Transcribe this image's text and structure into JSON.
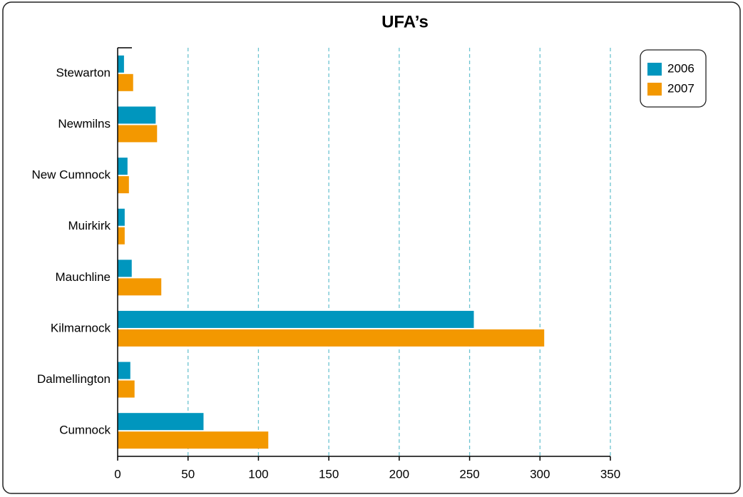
{
  "chart_data": {
    "type": "hbar",
    "title": "UFA’s",
    "categories": [
      "Stewarton",
      "Newmilns",
      "New Cumnock",
      "Muirkirk",
      "Mauchline",
      "Kilmarnock",
      "Dalmellington",
      "Cumnock"
    ],
    "series": [
      {
        "name": "2006",
        "color": "#0096be",
        "values": [
          4.5,
          27,
          7,
          5,
          10,
          253,
          9,
          61
        ]
      },
      {
        "name": "2007",
        "color": "#f39800",
        "values": [
          11,
          28,
          8,
          5,
          31,
          303,
          12,
          107
        ]
      }
    ],
    "xlim": [
      0,
      350
    ],
    "xticks": [
      0,
      50,
      100,
      150,
      200,
      250,
      300,
      350
    ],
    "grid": true,
    "legend": "upper right"
  }
}
